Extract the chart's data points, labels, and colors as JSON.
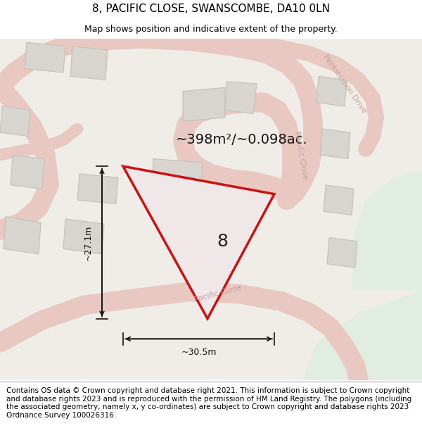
{
  "title_line1": "8, PACIFIC CLOSE, SWANSCOMBE, DA10 0LN",
  "title_line2": "Map shows position and indicative extent of the property.",
  "footer_text": "Contains OS data © Crown copyright and database right 2021. This information is subject to Crown copyright and database rights 2023 and is reproduced with the permission of HM Land Registry. The polygons (including the associated geometry, namely x, y co-ordinates) are subject to Crown copyright and database rights 2023 Ordnance Survey 100026316.",
  "area_text": "~398m²/~0.098ac.",
  "plot_number": "8",
  "dim_horizontal": "~30.5m",
  "dim_vertical": "~27.1m",
  "map_bg": "#f0ede8",
  "road_color": "#e8c8c0",
  "road_fill": "#f5f0ee",
  "plot_fill": "#f0e8e8",
  "plot_edge": "#cc1111",
  "building_fill": "#d8d4cf",
  "building_edge": "#c4bfbb",
  "green_fill": "#ddeedd",
  "road_label_color": "#c4a0a0",
  "title_fontsize": 11,
  "subtitle_fontsize": 9,
  "footer_fontsize": 7.5,
  "area_fontsize": 14,
  "plot_num_fontsize": 18,
  "dim_fontsize": 9,
  "road_label_fontsize": 8
}
